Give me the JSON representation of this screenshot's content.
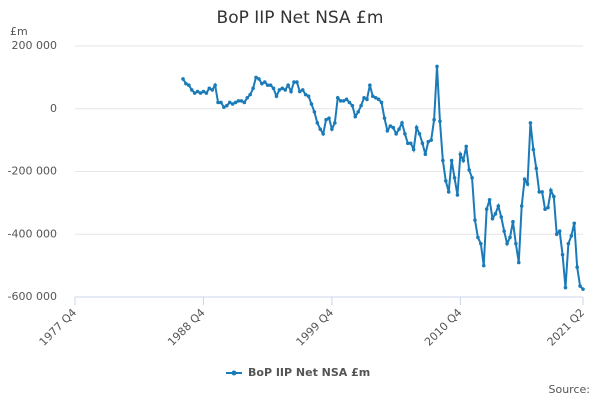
{
  "chart_data": {
    "type": "line",
    "title": "BoP IIP Net NSA £m",
    "y_unit": "£m",
    "source": "Source:",
    "categories": [
      "1977 Q4",
      null,
      null,
      null,
      null,
      null,
      null,
      null,
      null,
      null,
      null,
      null,
      null,
      null,
      null,
      null,
      null,
      null,
      null,
      null,
      null,
      null,
      null,
      null,
      null,
      null,
      null,
      null,
      null,
      null,
      null,
      null,
      null,
      null,
      null,
      null,
      null,
      null,
      null,
      null,
      null,
      null,
      null,
      null,
      "1988 Q4",
      null,
      null,
      null,
      null,
      null,
      null,
      null,
      null,
      null,
      null,
      null,
      null,
      null,
      null,
      null,
      null,
      null,
      null,
      null,
      null,
      null,
      null,
      null,
      null,
      null,
      null,
      null,
      null,
      null,
      null,
      null,
      null,
      null,
      null,
      null,
      null,
      null,
      null,
      null,
      null,
      null,
      null,
      null,
      "1999 Q4",
      null,
      null,
      null,
      null,
      null,
      null,
      null,
      null,
      null,
      null,
      null,
      null,
      null,
      null,
      null,
      null,
      null,
      null,
      null,
      null,
      null,
      null,
      null,
      null,
      null,
      null,
      null,
      null,
      null,
      null,
      null,
      null,
      null,
      null,
      null,
      null,
      null,
      null,
      null,
      null,
      null,
      null,
      null,
      "2010 Q4",
      null,
      null,
      null,
      null,
      null,
      null,
      null,
      null,
      null,
      null,
      null,
      null,
      null,
      null,
      null,
      null,
      null,
      null,
      null,
      null,
      null,
      null,
      null,
      null,
      null,
      null,
      null,
      null,
      null,
      null,
      null,
      null,
      null,
      null,
      null,
      null,
      null,
      null,
      null,
      null,
      null,
      "2021 Q2"
    ],
    "series": [
      {
        "name": "BoP IIP Net NSA £m",
        "color": "#1a7bb8",
        "values": [
          null,
          null,
          null,
          null,
          null,
          null,
          null,
          null,
          null,
          null,
          null,
          null,
          null,
          null,
          null,
          null,
          null,
          null,
          null,
          null,
          null,
          null,
          null,
          null,
          null,
          null,
          null,
          null,
          null,
          null,
          null,
          null,
          null,
          null,
          null,
          null,
          null,
          95000,
          80000,
          75000,
          60000,
          50000,
          55000,
          50000,
          55000,
          50000,
          65000,
          60000,
          75000,
          20000,
          20000,
          5000,
          10000,
          20000,
          15000,
          20000,
          25000,
          25000,
          20000,
          35000,
          45000,
          65000,
          100000,
          95000,
          80000,
          85000,
          75000,
          75000,
          65000,
          40000,
          60000,
          65000,
          60000,
          75000,
          55000,
          85000,
          85000,
          55000,
          60000,
          45000,
          40000,
          15000,
          -10000,
          -45000,
          -65000,
          -80000,
          -35000,
          -30000,
          -65000,
          -45000,
          35000,
          25000,
          25000,
          30000,
          20000,
          10000,
          -25000,
          -10000,
          10000,
          35000,
          30000,
          75000,
          40000,
          35000,
          30000,
          20000,
          -30000,
          -70000,
          -55000,
          -60000,
          -80000,
          -65000,
          -45000,
          -80000,
          -110000,
          -110000,
          -130000,
          -60000,
          -80000,
          -110000,
          -145000,
          -105000,
          -100000,
          -35000,
          135000,
          -40000,
          -165000,
          -230000,
          -265000,
          -165000,
          -220000,
          -275000,
          -145000,
          -165000,
          -120000,
          -195000,
          -220000,
          -355000,
          -410000,
          -430000,
          -500000,
          -320000,
          -290000,
          -350000,
          -335000,
          -310000,
          -345000,
          -390000,
          -430000,
          -410000,
          -360000,
          -430000,
          -490000,
          -310000,
          -225000,
          -240000,
          -45000,
          -130000,
          -190000,
          -265000,
          -265000,
          -320000,
          -315000,
          -260000,
          -280000,
          -400000,
          -390000,
          -465000,
          -570000,
          -430000,
          -405000,
          -365000,
          -505000,
          -565000,
          -575000
        ]
      }
    ],
    "ylim": [
      -600000,
      200000
    ],
    "yticks": [
      {
        "value": -600000,
        "label": "-600 000"
      },
      {
        "value": -400000,
        "label": "-400 000"
      },
      {
        "value": -200000,
        "label": "-200 000"
      },
      0,
      {
        "value": 200000,
        "label": "200 000"
      }
    ],
    "grid": true
  }
}
